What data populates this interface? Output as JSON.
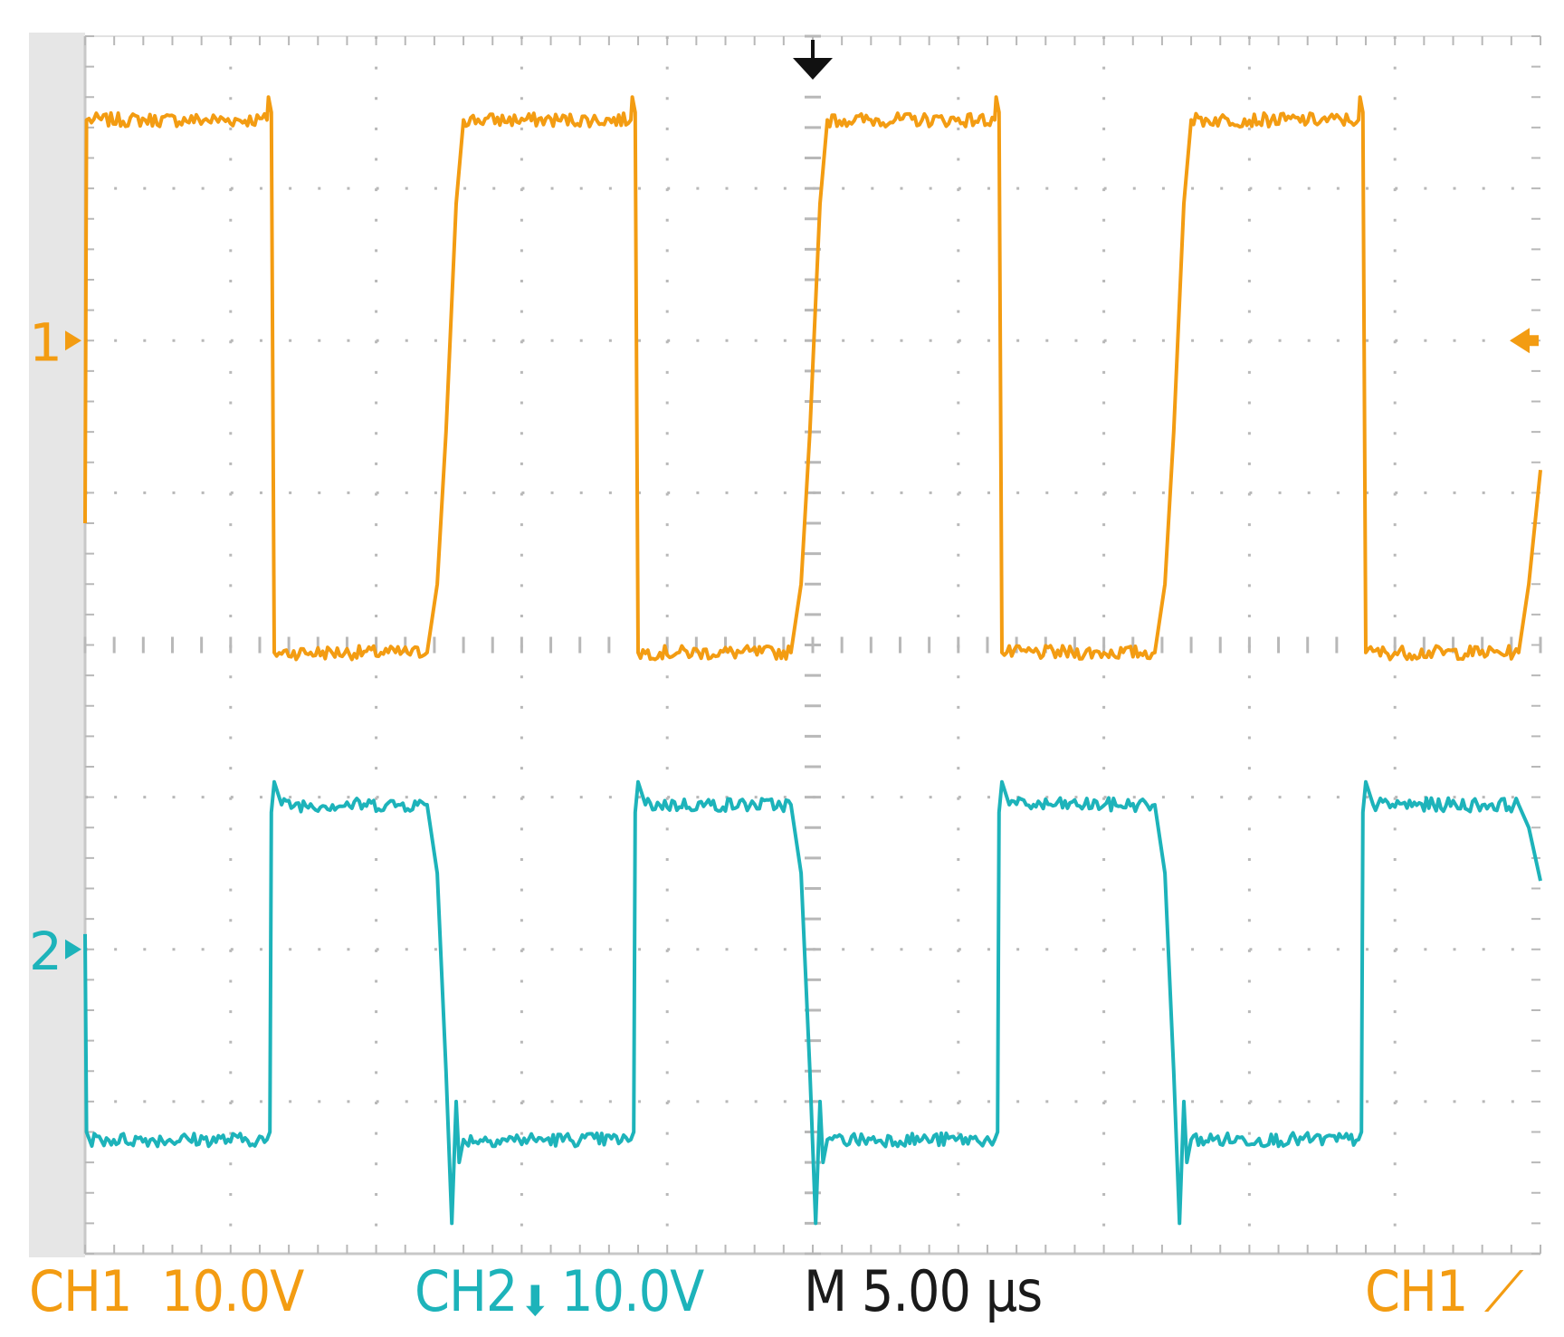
{
  "chart_data": {
    "type": "line",
    "x_units": "divisions",
    "y_units": "divisions",
    "xlim": [
      0,
      10
    ],
    "ylim": [
      -4,
      4
    ],
    "grid": true,
    "grid_divisions": {
      "x": 10,
      "y": 8
    },
    "trigger_position_x": 5,
    "series": [
      {
        "name": "CH1",
        "color": "#F39C12",
        "marker_label": "1",
        "ground_level_y": 2,
        "high_y": 3.45,
        "low_y": -0.05,
        "x": [
          0.0,
          0.01,
          1.25,
          1.26,
          1.28,
          1.3,
          2.35,
          2.42,
          2.48,
          2.55,
          2.6,
          3.75,
          3.76,
          3.78,
          3.8,
          4.85,
          4.92,
          4.98,
          5.05,
          5.1,
          6.25,
          6.26,
          6.28,
          6.3,
          7.35,
          7.42,
          7.48,
          7.55,
          7.6,
          8.75,
          8.76,
          8.78,
          8.8,
          9.85,
          9.92,
          10.0
        ],
        "y": [
          0.8,
          3.45,
          3.45,
          3.6,
          3.5,
          -0.05,
          -0.05,
          0.4,
          1.4,
          2.9,
          3.45,
          3.45,
          3.6,
          3.5,
          -0.05,
          -0.05,
          0.4,
          1.4,
          2.9,
          3.45,
          3.45,
          3.6,
          3.5,
          -0.05,
          -0.05,
          0.4,
          1.4,
          2.9,
          3.45,
          3.45,
          3.6,
          3.5,
          -0.05,
          -0.05,
          0.4,
          1.15
        ]
      },
      {
        "name": "CH2",
        "color": "#1DB3BA",
        "marker_label": "2",
        "ground_level_y": -2,
        "high_y": -1.05,
        "low_y": -3.25,
        "x": [
          0.0,
          0.01,
          0.03,
          1.25,
          1.27,
          1.28,
          1.3,
          1.35,
          2.35,
          2.42,
          2.48,
          2.52,
          2.55,
          2.57,
          2.6,
          3.75,
          3.77,
          3.78,
          3.8,
          3.85,
          4.85,
          4.92,
          4.98,
          5.02,
          5.05,
          5.07,
          5.1,
          6.25,
          6.27,
          6.28,
          6.3,
          6.35,
          7.35,
          7.42,
          7.48,
          7.52,
          7.55,
          7.57,
          7.6,
          8.75,
          8.77,
          8.78,
          8.8,
          8.85,
          9.85,
          9.92,
          10.0
        ],
        "y": [
          -1.9,
          -3.2,
          -3.25,
          -3.25,
          -3.2,
          -1.1,
          -0.9,
          -1.05,
          -1.05,
          -1.5,
          -2.8,
          -3.8,
          -3.0,
          -3.4,
          -3.25,
          -3.25,
          -3.2,
          -1.1,
          -0.9,
          -1.05,
          -1.05,
          -1.5,
          -2.8,
          -3.8,
          -3.0,
          -3.4,
          -3.25,
          -3.25,
          -3.2,
          -1.1,
          -0.9,
          -1.05,
          -1.05,
          -1.5,
          -2.8,
          -3.8,
          -3.0,
          -3.4,
          -3.25,
          -3.25,
          -3.2,
          -1.1,
          -0.9,
          -1.05,
          -1.05,
          -1.2,
          -1.55
        ]
      }
    ]
  },
  "status_bar": {
    "ch1_label": "CH1",
    "ch1_scale": "10.0V",
    "ch2_label": "CH2",
    "ch2_coupling": "⬇",
    "ch2_scale": "10.0V",
    "timebase": "M 5.00 μs",
    "trigger_source": "CH1",
    "trigger_slope": "⟋"
  },
  "colors": {
    "ch1": "#F39C12",
    "ch2": "#1DB3BA",
    "text": "#1a1a1a",
    "grid": "#b8b8b8",
    "frame": "#c8c8c8"
  }
}
